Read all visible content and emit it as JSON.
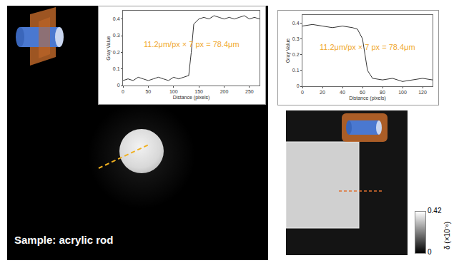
{
  "chart_data": [
    {
      "type": "line",
      "x": [
        0,
        10,
        20,
        30,
        40,
        50,
        60,
        70,
        80,
        90,
        100,
        110,
        120,
        130,
        135,
        140,
        150,
        160,
        170,
        180,
        190,
        200,
        210,
        220,
        230,
        240,
        250,
        260,
        270
      ],
      "values": [
        0.03,
        0.04,
        0.03,
        0.05,
        0.04,
        0.03,
        0.04,
        0.05,
        0.04,
        0.03,
        0.05,
        0.04,
        0.05,
        0.06,
        0.2,
        0.37,
        0.4,
        0.41,
        0.4,
        0.42,
        0.41,
        0.4,
        0.41,
        0.4,
        0.41,
        0.42,
        0.4,
        0.41,
        0.4
      ],
      "color": "#333333",
      "xlim": [
        0,
        270
      ],
      "xticks": [
        0,
        50,
        100,
        150,
        200,
        250
      ],
      "ylim": [
        0,
        0.45
      ],
      "yticks": [
        0,
        0.1,
        0.2,
        0.3,
        0.4
      ],
      "x_label": "Distance (pixels)",
      "y_label": "Gray Value",
      "annotation": "11.2μm/px × 7 px = 78.4μm"
    },
    {
      "type": "line",
      "x": [
        0,
        10,
        20,
        30,
        40,
        50,
        55,
        60,
        65,
        70,
        80,
        90,
        100,
        110,
        120,
        130
      ],
      "values": [
        0.38,
        0.39,
        0.38,
        0.37,
        0.38,
        0.37,
        0.36,
        0.3,
        0.1,
        0.05,
        0.04,
        0.05,
        0.03,
        0.04,
        0.05,
        0.04
      ],
      "color": "#333333",
      "xlim": [
        0,
        130
      ],
      "xticks": [
        0,
        20,
        40,
        60,
        80,
        100,
        120
      ],
      "ylim": [
        0,
        0.45
      ],
      "yticks": [
        0,
        0.1,
        0.2,
        0.3,
        0.4
      ],
      "x_label": "Distance (pixels)",
      "y_label": "Gray Value",
      "annotation": "11.2μm/px × 7 px = 78.4μm"
    }
  ],
  "sample_label": "Sample: acrylic rod",
  "colorbar": {
    "range": [
      0,
      0.42
    ],
    "ticks": [
      0,
      0.42
    ],
    "label": "δ (×10⁻⁶)"
  }
}
